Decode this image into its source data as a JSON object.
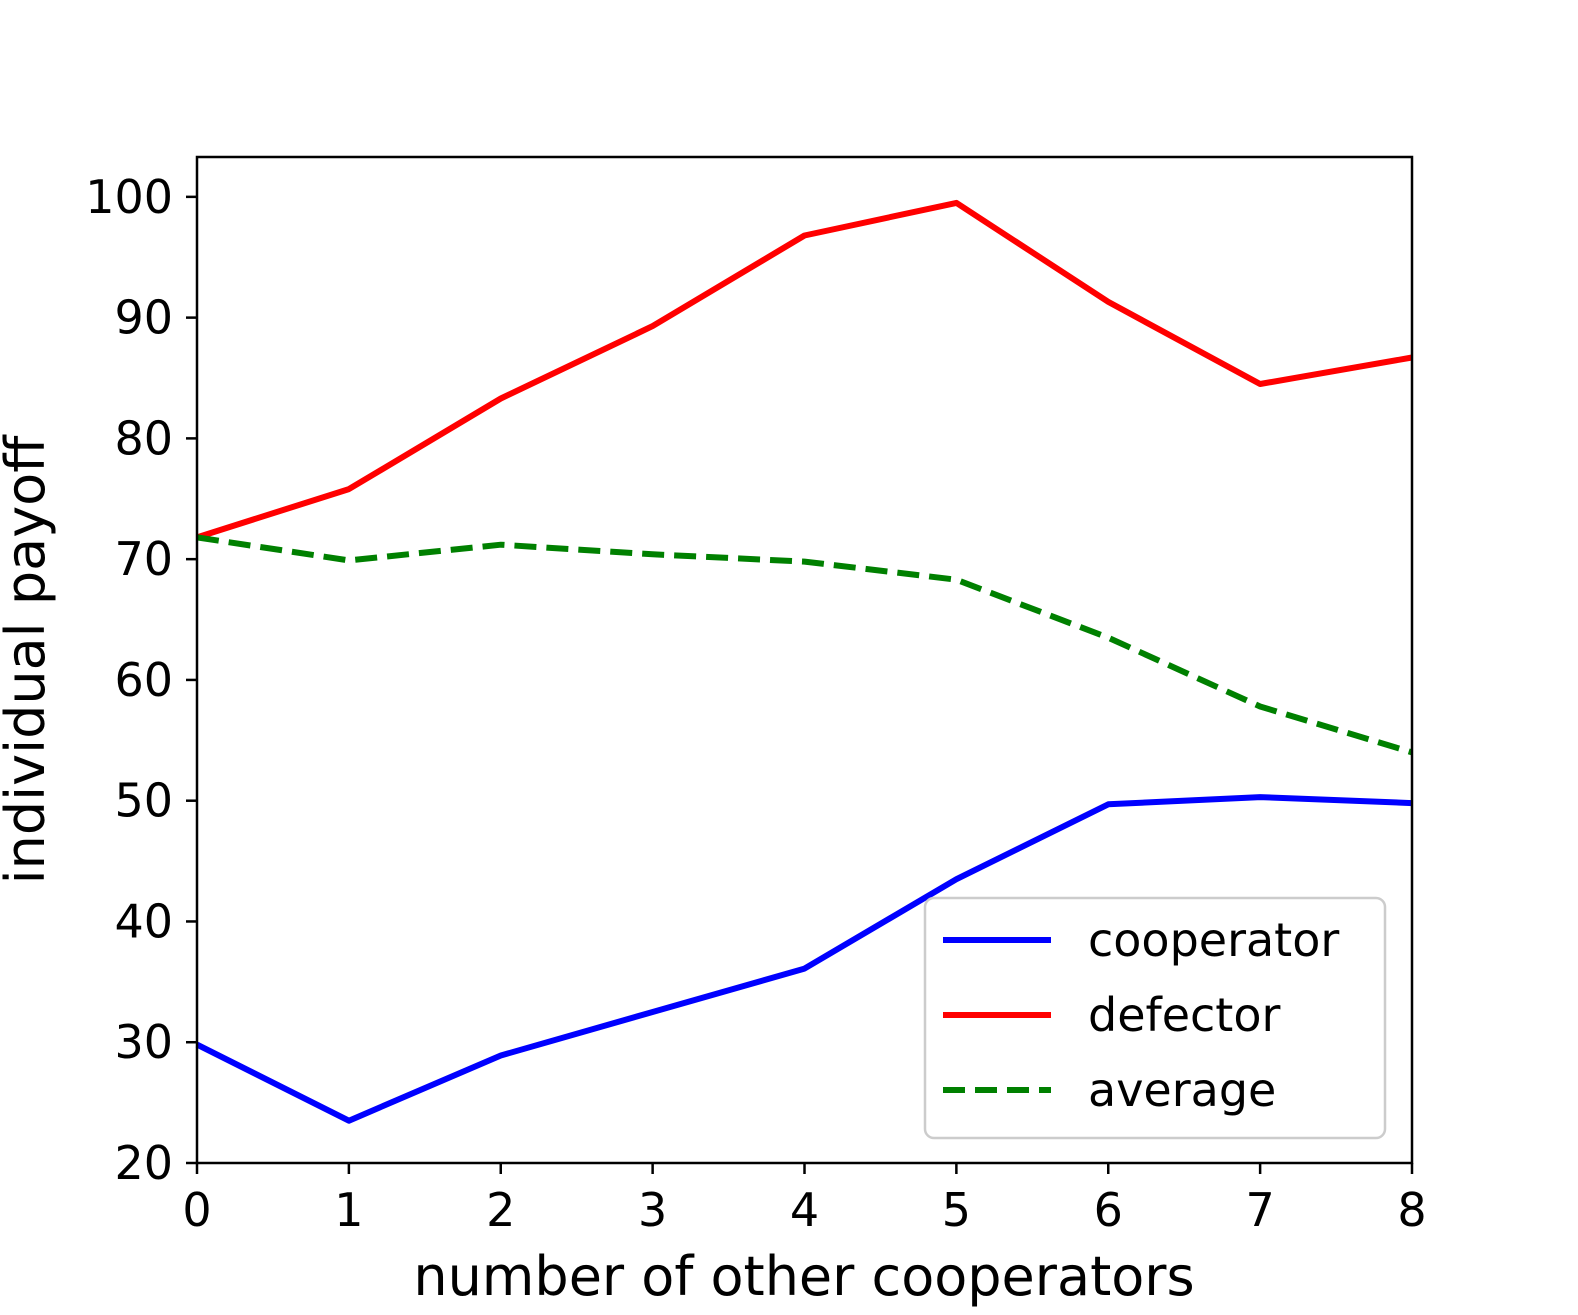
{
  "chart_data": {
    "type": "line",
    "title": "",
    "xlabel": "number of other cooperators",
    "ylabel": "individual payoff",
    "x": [
      0,
      1,
      2,
      3,
      4,
      5,
      6,
      7,
      8
    ],
    "xlim": [
      0,
      8
    ],
    "ylim": [
      20,
      103.3
    ],
    "xticks": [
      0,
      1,
      2,
      3,
      4,
      5,
      6,
      7,
      8
    ],
    "yticks": [
      20,
      30,
      40,
      50,
      60,
      70,
      80,
      90,
      100
    ],
    "grid": false,
    "legend_position": "lower-right",
    "series": [
      {
        "name": "cooperator",
        "color": "#0000ff",
        "dash": "solid",
        "values": [
          29.8,
          23.5,
          28.9,
          32.5,
          36.1,
          43.5,
          49.7,
          50.3,
          49.8
        ]
      },
      {
        "name": "defector",
        "color": "#ff0000",
        "dash": "solid",
        "values": [
          71.8,
          75.8,
          83.3,
          89.3,
          96.8,
          99.5,
          91.3,
          84.5,
          86.7
        ]
      },
      {
        "name": "average",
        "color": "#008000",
        "dash": "dashed",
        "values": [
          71.8,
          69.9,
          71.2,
          70.4,
          69.8,
          68.3,
          63.5,
          57.8,
          54.0
        ]
      }
    ]
  }
}
